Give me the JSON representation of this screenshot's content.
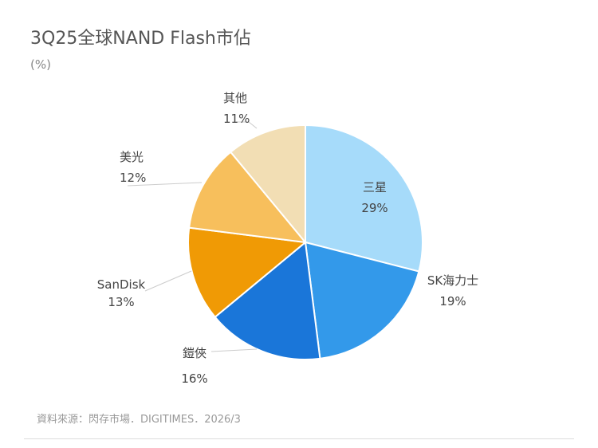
{
  "header": {
    "title": "3Q25全球NAND Flash市佔",
    "unit": "(%)"
  },
  "chart_data": {
    "type": "pie",
    "title": "3Q25全球NAND Flash市佔",
    "subtitle": "(%)",
    "categories": [
      "三星",
      "SK海力士",
      "鎧俠",
      "SanDisk",
      "美光",
      "其他"
    ],
    "values": [
      29,
      19,
      16,
      13,
      12,
      11
    ],
    "labels": [
      "29%",
      "19%",
      "16%",
      "13%",
      "12%",
      "11%"
    ],
    "colors": [
      "#a6dbfa",
      "#3399ea",
      "#1a76d9",
      "#f09a05",
      "#f7bf5c",
      "#f2deb4"
    ],
    "start_angle": "12 o'clock, clockwise",
    "legend": "none (labels on/near slices)"
  },
  "slices": [
    {
      "name": "三星",
      "pct": "29%"
    },
    {
      "name": "SK海力士",
      "pct": "19%"
    },
    {
      "name": "鎧俠",
      "pct": "16%"
    },
    {
      "name": "SanDisk",
      "pct": "13%"
    },
    {
      "name": "美光",
      "pct": "12%"
    },
    {
      "name": "其他",
      "pct": "11%"
    }
  ],
  "footer": {
    "source": "資料來源：閃存市場．DIGITIMES．2026/3"
  }
}
